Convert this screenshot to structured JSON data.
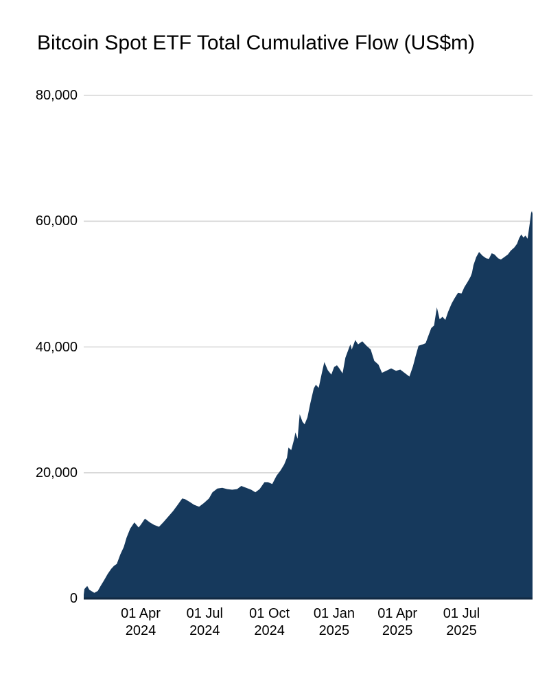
{
  "title": "Bitcoin Spot ETF Total Cumulative Flow (US$m)",
  "colors": {
    "area_fill": "#16395c",
    "axis_line": "#112942",
    "gridline": "#d6d6d6",
    "text": "#000000",
    "background": "#ffffff"
  },
  "chart_data": {
    "type": "area",
    "title": "Bitcoin Spot ETF Total Cumulative Flow (US$m)",
    "series_name": "Total cumulative flow",
    "unit": "US$m",
    "xlabel": "",
    "ylabel": "",
    "grid": true,
    "legend": false,
    "ylim": [
      0,
      80000
    ],
    "x_domain": [
      "2024-01-11",
      "2025-10-10"
    ],
    "y_ticks": [
      {
        "label": "0",
        "value": 0
      },
      {
        "label": "20,000",
        "value": 20000
      },
      {
        "label": "40,000",
        "value": 40000
      },
      {
        "label": "60,000",
        "value": 60000
      },
      {
        "label": "80,000",
        "value": 80000
      }
    ],
    "x_ticks": [
      {
        "line1": "01 Apr",
        "line2": "2024",
        "date": "2024-04-01"
      },
      {
        "line1": "01 Jul",
        "line2": "2024",
        "date": "2024-07-01"
      },
      {
        "line1": "01 Oct",
        "line2": "2024",
        "date": "2024-10-01"
      },
      {
        "line1": "01 Jan",
        "line2": "2025",
        "date": "2025-01-01"
      },
      {
        "line1": "01 Apr",
        "line2": "2025",
        "date": "2025-04-01"
      },
      {
        "line1": "01 Jul",
        "line2": "2025",
        "date": "2025-07-01"
      }
    ],
    "points": [
      [
        "2024-01-11",
        600
      ],
      [
        "2024-01-12",
        1500
      ],
      [
        "2024-01-16",
        2000
      ],
      [
        "2024-01-19",
        1400
      ],
      [
        "2024-01-26",
        900
      ],
      [
        "2024-01-31",
        1200
      ],
      [
        "2024-02-04",
        2000
      ],
      [
        "2024-02-09",
        2900
      ],
      [
        "2024-02-14",
        3900
      ],
      [
        "2024-02-19",
        4700
      ],
      [
        "2024-02-23",
        5200
      ],
      [
        "2024-02-27",
        5500
      ],
      [
        "2024-03-03",
        7000
      ],
      [
        "2024-03-08",
        8200
      ],
      [
        "2024-03-12",
        9700
      ],
      [
        "2024-03-17",
        11100
      ],
      [
        "2024-03-23",
        12100
      ],
      [
        "2024-03-29",
        11300
      ],
      [
        "2024-04-01",
        11700
      ],
      [
        "2024-04-07",
        12700
      ],
      [
        "2024-04-14",
        12100
      ],
      [
        "2024-04-20",
        11700
      ],
      [
        "2024-04-27",
        11400
      ],
      [
        "2024-05-03",
        12100
      ],
      [
        "2024-05-10",
        13000
      ],
      [
        "2024-05-17",
        13900
      ],
      [
        "2024-05-23",
        14800
      ],
      [
        "2024-05-30",
        15900
      ],
      [
        "2024-06-03",
        15800
      ],
      [
        "2024-06-09",
        15400
      ],
      [
        "2024-06-16",
        14900
      ],
      [
        "2024-06-23",
        14600
      ],
      [
        "2024-06-30",
        15200
      ],
      [
        "2024-07-07",
        15900
      ],
      [
        "2024-07-12",
        16900
      ],
      [
        "2024-07-19",
        17500
      ],
      [
        "2024-07-26",
        17600
      ],
      [
        "2024-08-02",
        17400
      ],
      [
        "2024-08-09",
        17300
      ],
      [
        "2024-08-16",
        17400
      ],
      [
        "2024-08-22",
        17900
      ],
      [
        "2024-08-29",
        17600
      ],
      [
        "2024-09-05",
        17300
      ],
      [
        "2024-09-11",
        16900
      ],
      [
        "2024-09-17",
        17400
      ],
      [
        "2024-09-24",
        18500
      ],
      [
        "2024-09-29",
        18500
      ],
      [
        "2024-10-05",
        18200
      ],
      [
        "2024-10-11",
        19500
      ],
      [
        "2024-10-17",
        20400
      ],
      [
        "2024-10-22",
        21300
      ],
      [
        "2024-10-26",
        22400
      ],
      [
        "2024-10-28",
        24000
      ],
      [
        "2024-11-01",
        23600
      ],
      [
        "2024-11-05",
        25300
      ],
      [
        "2024-11-07",
        26400
      ],
      [
        "2024-11-10",
        25400
      ],
      [
        "2024-11-13",
        29300
      ],
      [
        "2024-11-17",
        28100
      ],
      [
        "2024-11-20",
        27700
      ],
      [
        "2024-11-24",
        28800
      ],
      [
        "2024-11-28",
        31000
      ],
      [
        "2024-12-03",
        33400
      ],
      [
        "2024-12-06",
        34000
      ],
      [
        "2024-12-10",
        33500
      ],
      [
        "2024-12-14",
        35600
      ],
      [
        "2024-12-18",
        37600
      ],
      [
        "2024-12-23",
        36300
      ],
      [
        "2024-12-28",
        35600
      ],
      [
        "2025-01-01",
        36800
      ],
      [
        "2025-01-05",
        37100
      ],
      [
        "2025-01-09",
        36500
      ],
      [
        "2025-01-13",
        35800
      ],
      [
        "2025-01-17",
        38300
      ],
      [
        "2025-01-21",
        39500
      ],
      [
        "2025-01-24",
        40400
      ],
      [
        "2025-01-26",
        39600
      ],
      [
        "2025-01-31",
        41100
      ],
      [
        "2025-02-04",
        40400
      ],
      [
        "2025-02-10",
        40900
      ],
      [
        "2025-02-16",
        40200
      ],
      [
        "2025-02-22",
        39600
      ],
      [
        "2025-02-27",
        37800
      ],
      [
        "2025-03-05",
        37200
      ],
      [
        "2025-03-10",
        35900
      ],
      [
        "2025-03-16",
        36200
      ],
      [
        "2025-03-23",
        36600
      ],
      [
        "2025-03-30",
        36200
      ],
      [
        "2025-04-05",
        36400
      ],
      [
        "2025-04-12",
        35800
      ],
      [
        "2025-04-18",
        35300
      ],
      [
        "2025-04-23",
        36900
      ],
      [
        "2025-04-27",
        38600
      ],
      [
        "2025-05-01",
        40200
      ],
      [
        "2025-05-07",
        40400
      ],
      [
        "2025-05-11",
        40600
      ],
      [
        "2025-05-15",
        41800
      ],
      [
        "2025-05-19",
        43000
      ],
      [
        "2025-05-23",
        43400
      ],
      [
        "2025-05-27",
        46300
      ],
      [
        "2025-05-31",
        44400
      ],
      [
        "2025-06-04",
        44800
      ],
      [
        "2025-06-08",
        44300
      ],
      [
        "2025-06-12",
        45600
      ],
      [
        "2025-06-17",
        46900
      ],
      [
        "2025-06-21",
        47700
      ],
      [
        "2025-06-26",
        48600
      ],
      [
        "2025-07-01",
        48500
      ],
      [
        "2025-07-05",
        49500
      ],
      [
        "2025-07-10",
        50400
      ],
      [
        "2025-07-14",
        51200
      ],
      [
        "2025-07-16",
        51800
      ],
      [
        "2025-07-18",
        53000
      ],
      [
        "2025-07-22",
        54300
      ],
      [
        "2025-07-26",
        55100
      ],
      [
        "2025-07-31",
        54500
      ],
      [
        "2025-08-05",
        54100
      ],
      [
        "2025-08-09",
        54000
      ],
      [
        "2025-08-13",
        54900
      ],
      [
        "2025-08-17",
        54700
      ],
      [
        "2025-08-22",
        54100
      ],
      [
        "2025-08-26",
        53900
      ],
      [
        "2025-08-31",
        54300
      ],
      [
        "2025-09-05",
        54700
      ],
      [
        "2025-09-09",
        55300
      ],
      [
        "2025-09-14",
        55800
      ],
      [
        "2025-09-18",
        56400
      ],
      [
        "2025-09-21",
        57300
      ],
      [
        "2025-09-24",
        57900
      ],
      [
        "2025-09-27",
        57400
      ],
      [
        "2025-09-30",
        57700
      ],
      [
        "2025-10-03",
        57200
      ],
      [
        "2025-10-06",
        59600
      ],
      [
        "2025-10-08",
        61300
      ],
      [
        "2025-10-09",
        61600
      ],
      [
        "2025-10-10",
        61200
      ]
    ]
  }
}
